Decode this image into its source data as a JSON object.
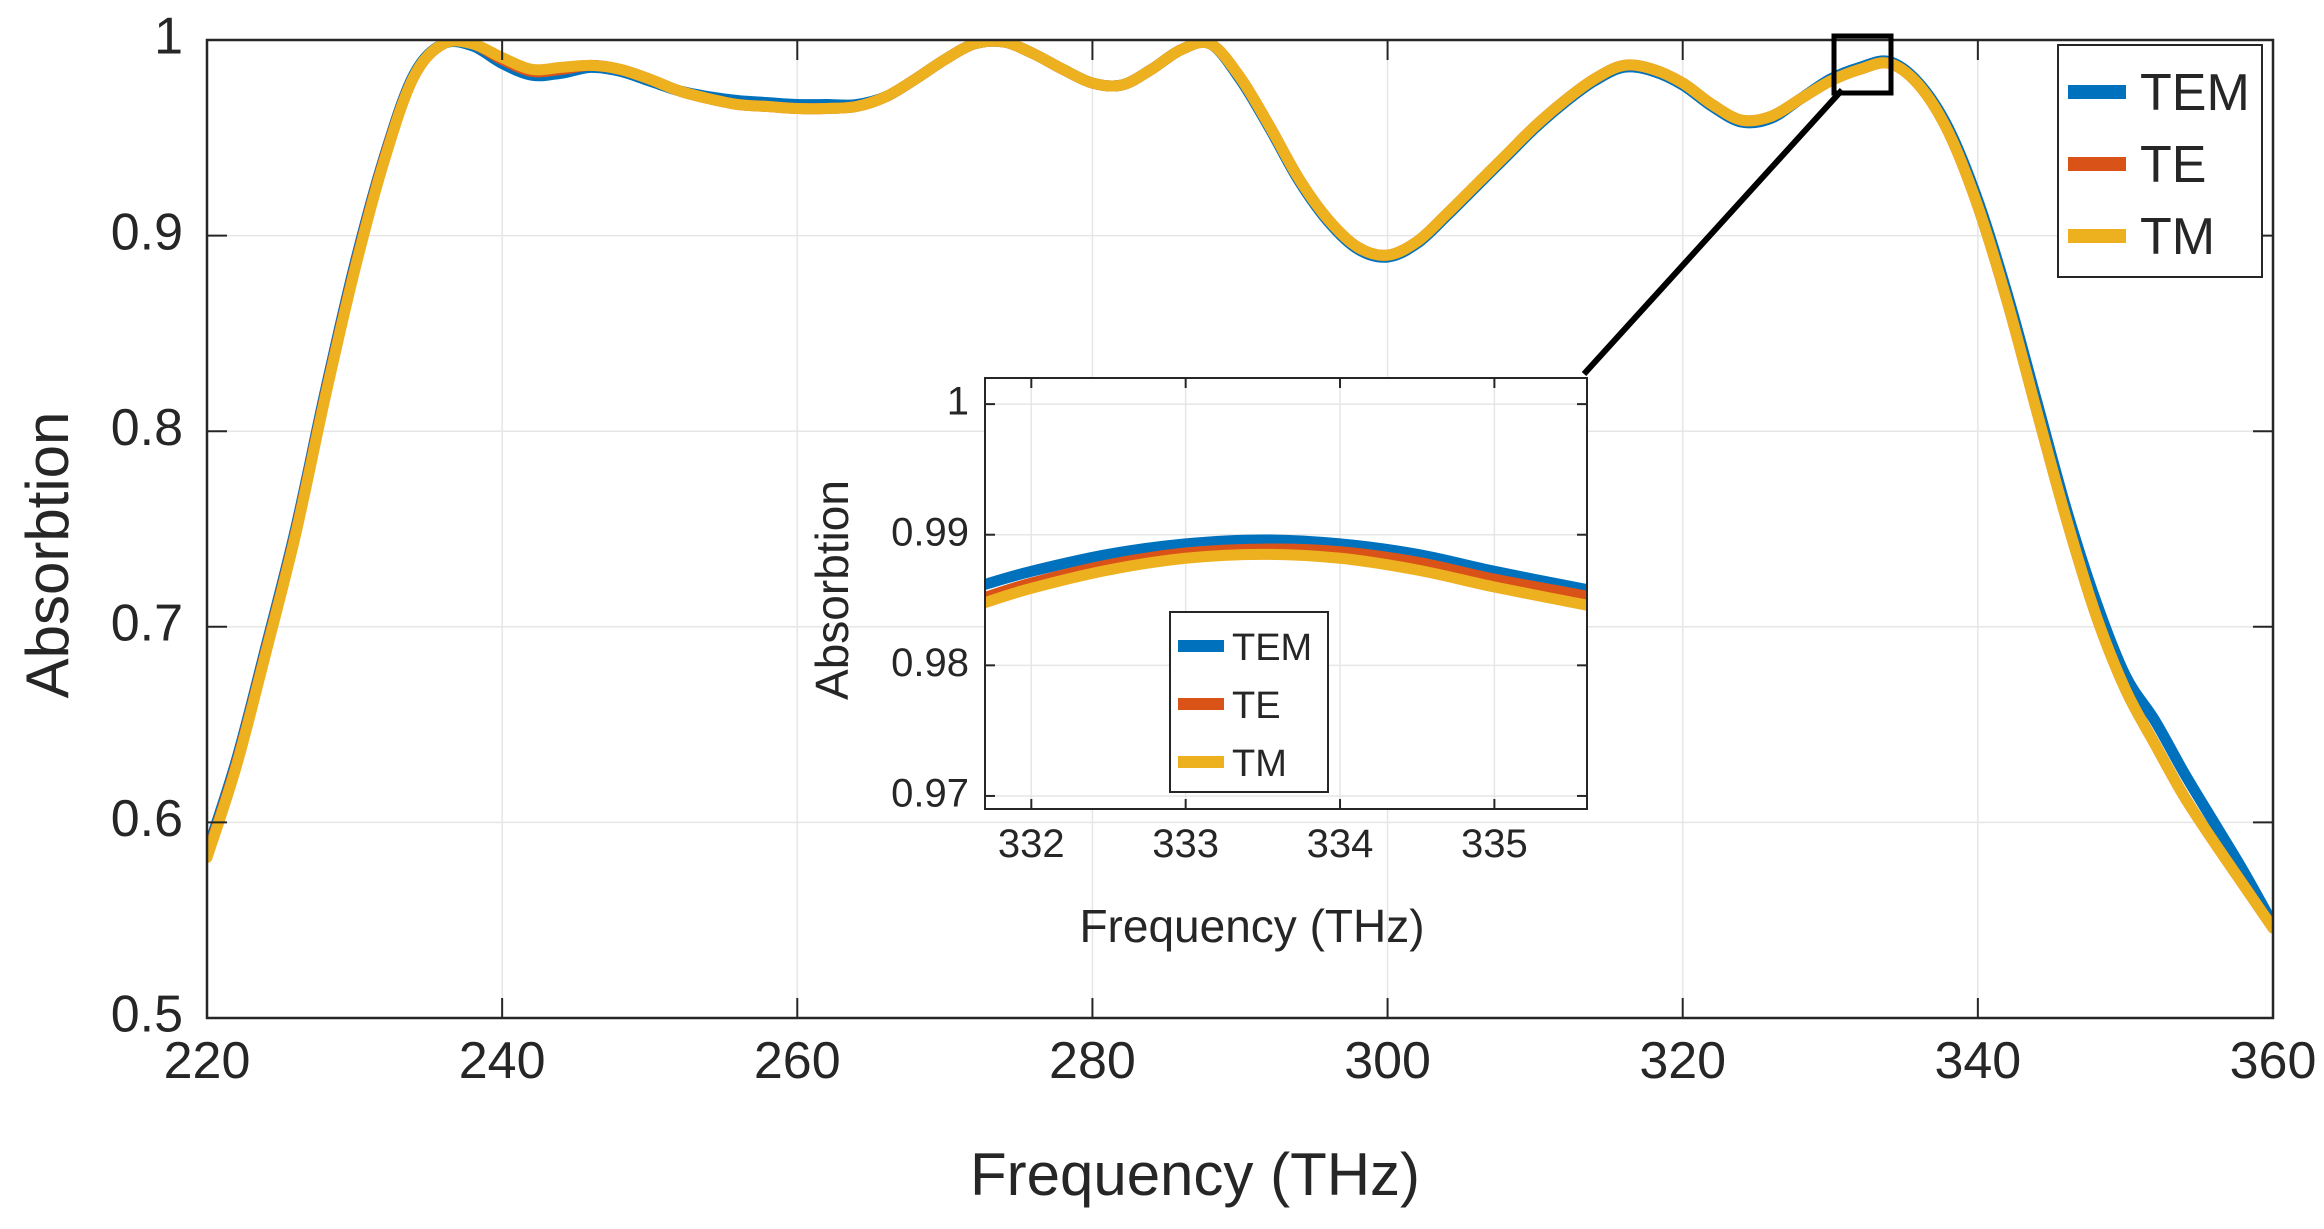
{
  "chart_data": [
    {
      "type": "line",
      "title": "",
      "xlabel": "Frequency (THz)",
      "ylabel": "Absorbtion",
      "xlim": [
        220,
        360
      ],
      "ylim": [
        0.5,
        1
      ],
      "xticks": [
        "220",
        "240",
        "260",
        "280",
        "300",
        "320",
        "340",
        "360"
      ],
      "yticks": [
        "0.5",
        "0.6",
        "0.7",
        "0.8",
        "0.9",
        "1"
      ],
      "grid": true,
      "legend_position": "top-right",
      "series": [
        {
          "name": "TEM",
          "color": "#0072BD",
          "points": [
            [
              220,
              0.585
            ],
            [
              222,
              0.632
            ],
            [
              224,
              0.69
            ],
            [
              226,
              0.75
            ],
            [
              228,
              0.82
            ],
            [
              230,
              0.885
            ],
            [
              232,
              0.94
            ],
            [
              234,
              0.982
            ],
            [
              236,
              0.998
            ],
            [
              238,
              0.997
            ],
            [
              240,
              0.988
            ],
            [
              242,
              0.982
            ],
            [
              244,
              0.983
            ],
            [
              246,
              0.986
            ],
            [
              248,
              0.984
            ],
            [
              250,
              0.979
            ],
            [
              252,
              0.974
            ],
            [
              254,
              0.971
            ],
            [
              256,
              0.969
            ],
            [
              258,
              0.968
            ],
            [
              260,
              0.967
            ],
            [
              262,
              0.967
            ],
            [
              264,
              0.967
            ],
            [
              266,
              0.971
            ],
            [
              268,
              0.98
            ],
            [
              270,
              0.99
            ],
            [
              272,
              0.998
            ],
            [
              274,
              0.999
            ],
            [
              276,
              0.993
            ],
            [
              278,
              0.985
            ],
            [
              280,
              0.978
            ],
            [
              282,
              0.977
            ],
            [
              284,
              0.985
            ],
            [
              286,
              0.995
            ],
            [
              288,
              0.998
            ],
            [
              290,
              0.98
            ],
            [
              292,
              0.955
            ],
            [
              294,
              0.928
            ],
            [
              296,
              0.907
            ],
            [
              298,
              0.893
            ],
            [
              300,
              0.889
            ],
            [
              302,
              0.896
            ],
            [
              304,
              0.91
            ],
            [
              306,
              0.925
            ],
            [
              308,
              0.94
            ],
            [
              310,
              0.955
            ],
            [
              312,
              0.968
            ],
            [
              314,
              0.979
            ],
            [
              316,
              0.986
            ],
            [
              318,
              0.984
            ],
            [
              320,
              0.977
            ],
            [
              322,
              0.966
            ],
            [
              324,
              0.958
            ],
            [
              326,
              0.96
            ],
            [
              328,
              0.97
            ],
            [
              330,
              0.98
            ],
            [
              332,
              0.986
            ],
            [
              334,
              0.989
            ],
            [
              336,
              0.978
            ],
            [
              338,
              0.955
            ],
            [
              340,
              0.918
            ],
            [
              342,
              0.87
            ],
            [
              344,
              0.815
            ],
            [
              346,
              0.76
            ],
            [
              348,
              0.713
            ],
            [
              350,
              0.675
            ],
            [
              352,
              0.652
            ],
            [
              354,
              0.625
            ],
            [
              356,
              0.6
            ],
            [
              358,
              0.575
            ],
            [
              360,
              0.548
            ]
          ]
        },
        {
          "name": "TE",
          "color": "#D95319",
          "points": [
            [
              220,
              0.583
            ],
            [
              222,
              0.63
            ],
            [
              224,
              0.688
            ],
            [
              226,
              0.748
            ],
            [
              228,
              0.818
            ],
            [
              230,
              0.883
            ],
            [
              232,
              0.939
            ],
            [
              234,
              0.981
            ],
            [
              236,
              0.998
            ],
            [
              238,
              0.998
            ],
            [
              240,
              0.99
            ],
            [
              242,
              0.984
            ],
            [
              244,
              0.985
            ],
            [
              246,
              0.987
            ],
            [
              248,
              0.985
            ],
            [
              250,
              0.98
            ],
            [
              252,
              0.974
            ],
            [
              254,
              0.97
            ],
            [
              256,
              0.967
            ],
            [
              258,
              0.966
            ],
            [
              260,
              0.965
            ],
            [
              262,
              0.965
            ],
            [
              264,
              0.966
            ],
            [
              266,
              0.971
            ],
            [
              268,
              0.98
            ],
            [
              270,
              0.99
            ],
            [
              272,
              0.998
            ],
            [
              274,
              0.999
            ],
            [
              276,
              0.993
            ],
            [
              278,
              0.985
            ],
            [
              280,
              0.978
            ],
            [
              282,
              0.977
            ],
            [
              284,
              0.985
            ],
            [
              286,
              0.995
            ],
            [
              288,
              0.998
            ],
            [
              290,
              0.981
            ],
            [
              292,
              0.956
            ],
            [
              294,
              0.929
            ],
            [
              296,
              0.908
            ],
            [
              298,
              0.894
            ],
            [
              300,
              0.89
            ],
            [
              302,
              0.897
            ],
            [
              304,
              0.911
            ],
            [
              306,
              0.926
            ],
            [
              308,
              0.941
            ],
            [
              310,
              0.956
            ],
            [
              312,
              0.969
            ],
            [
              314,
              0.98
            ],
            [
              316,
              0.987
            ],
            [
              318,
              0.985
            ],
            [
              320,
              0.978
            ],
            [
              322,
              0.967
            ],
            [
              324,
              0.959
            ],
            [
              326,
              0.961
            ],
            [
              328,
              0.97
            ],
            [
              330,
              0.979
            ],
            [
              332,
              0.985
            ],
            [
              334,
              0.988
            ],
            [
              336,
              0.977
            ],
            [
              338,
              0.953
            ],
            [
              340,
              0.915
            ],
            [
              342,
              0.866
            ],
            [
              344,
              0.81
            ],
            [
              346,
              0.755
            ],
            [
              348,
              0.706
            ],
            [
              350,
              0.668
            ],
            [
              352,
              0.64
            ],
            [
              354,
              0.613
            ],
            [
              356,
              0.59
            ],
            [
              358,
              0.568
            ],
            [
              360,
              0.546
            ]
          ]
        },
        {
          "name": "TM",
          "color": "#EDB120",
          "points": [
            [
              220,
              0.582
            ],
            [
              222,
              0.629
            ],
            [
              224,
              0.687
            ],
            [
              226,
              0.747
            ],
            [
              228,
              0.817
            ],
            [
              230,
              0.882
            ],
            [
              232,
              0.938
            ],
            [
              234,
              0.981
            ],
            [
              236,
              0.998
            ],
            [
              238,
              0.998
            ],
            [
              240,
              0.991
            ],
            [
              242,
              0.985
            ],
            [
              244,
              0.986
            ],
            [
              246,
              0.987
            ],
            [
              248,
              0.985
            ],
            [
              250,
              0.98
            ],
            [
              252,
              0.974
            ],
            [
              254,
              0.97
            ],
            [
              256,
              0.967
            ],
            [
              258,
              0.966
            ],
            [
              260,
              0.965
            ],
            [
              262,
              0.965
            ],
            [
              264,
              0.966
            ],
            [
              266,
              0.971
            ],
            [
              268,
              0.98
            ],
            [
              270,
              0.99
            ],
            [
              272,
              0.998
            ],
            [
              274,
              0.999
            ],
            [
              276,
              0.993
            ],
            [
              278,
              0.985
            ],
            [
              280,
              0.978
            ],
            [
              282,
              0.977
            ],
            [
              284,
              0.985
            ],
            [
              286,
              0.995
            ],
            [
              288,
              0.998
            ],
            [
              290,
              0.981
            ],
            [
              292,
              0.956
            ],
            [
              294,
              0.929
            ],
            [
              296,
              0.908
            ],
            [
              298,
              0.894
            ],
            [
              300,
              0.89
            ],
            [
              302,
              0.897
            ],
            [
              304,
              0.911
            ],
            [
              306,
              0.926
            ],
            [
              308,
              0.941
            ],
            [
              310,
              0.956
            ],
            [
              312,
              0.969
            ],
            [
              314,
              0.98
            ],
            [
              316,
              0.987
            ],
            [
              318,
              0.985
            ],
            [
              320,
              0.978
            ],
            [
              322,
              0.967
            ],
            [
              324,
              0.959
            ],
            [
              326,
              0.961
            ],
            [
              328,
              0.97
            ],
            [
              330,
              0.979
            ],
            [
              332,
              0.985
            ],
            [
              334,
              0.988
            ],
            [
              336,
              0.977
            ],
            [
              338,
              0.953
            ],
            [
              340,
              0.915
            ],
            [
              342,
              0.866
            ],
            [
              344,
              0.81
            ],
            [
              346,
              0.755
            ],
            [
              348,
              0.706
            ],
            [
              350,
              0.668
            ],
            [
              352,
              0.64
            ],
            [
              354,
              0.613
            ],
            [
              356,
              0.59
            ],
            [
              358,
              0.568
            ],
            [
              360,
              0.546
            ]
          ]
        }
      ],
      "annotation": "zoom box around 331-334 THz near absorption 0.99, linked to inset"
    },
    {
      "type": "line",
      "title": "",
      "xlabel": "Frequency (THz)",
      "ylabel": "Absorbtion",
      "xlim": [
        331.7,
        335.6
      ],
      "ylim": [
        0.969,
        1.002
      ],
      "xticks": [
        "332",
        "333",
        "334",
        "335"
      ],
      "yticks": [
        "0.97",
        "0.98",
        "0.99",
        "1"
      ],
      "grid": true,
      "legend_position": "bottom-center",
      "series": [
        {
          "name": "TEM",
          "color": "#0072BD",
          "points": [
            [
              331.7,
              0.9862
            ],
            [
              332.0,
              0.9872
            ],
            [
              332.5,
              0.9885
            ],
            [
              333.0,
              0.9893
            ],
            [
              333.5,
              0.9896
            ],
            [
              334.0,
              0.9893
            ],
            [
              334.5,
              0.9885
            ],
            [
              335.0,
              0.9872
            ],
            [
              335.6,
              0.9858
            ]
          ]
        },
        {
          "name": "TE",
          "color": "#D95319",
          "points": [
            [
              331.7,
              0.9852
            ],
            [
              332.0,
              0.9863
            ],
            [
              332.5,
              0.9877
            ],
            [
              333.0,
              0.9886
            ],
            [
              333.5,
              0.9889
            ],
            [
              334.0,
              0.9887
            ],
            [
              334.5,
              0.9879
            ],
            [
              335.0,
              0.9866
            ],
            [
              335.6,
              0.9853
            ]
          ]
        },
        {
          "name": "TM",
          "color": "#EDB120",
          "points": [
            [
              331.7,
              0.9848
            ],
            [
              332.0,
              0.9859
            ],
            [
              332.5,
              0.9873
            ],
            [
              333.0,
              0.9882
            ],
            [
              333.5,
              0.9885
            ],
            [
              334.0,
              0.9882
            ],
            [
              334.5,
              0.9873
            ],
            [
              335.0,
              0.986
            ],
            [
              335.6,
              0.9846
            ]
          ]
        }
      ]
    }
  ]
}
